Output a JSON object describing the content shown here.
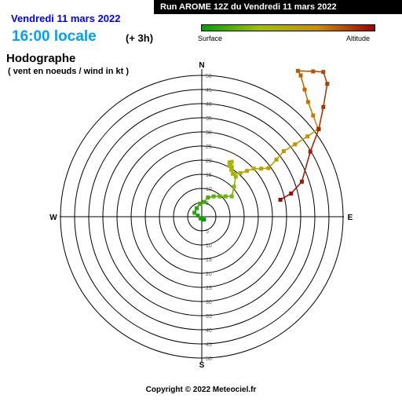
{
  "header": {
    "date": "Vendredi 11 mars 2022",
    "time": "16:00 locale",
    "offset": "(+ 3h)",
    "run": "Run AROME 12Z du Vendredi 11 mars 2022",
    "scale_low": "Surface",
    "scale_high": "Altitude",
    "scale_colors": [
      "#00a000",
      "#a0c000",
      "#c89000",
      "#a00000"
    ]
  },
  "footer": {
    "copyright": "Copyright © 2022 Meteociel.fr"
  },
  "chart_data": {
    "type": "scatter",
    "title": "Hodographe",
    "subtitle": "( vent en noeuds / wind in kt )",
    "compass": {
      "n": "N",
      "s": "S",
      "e": "E",
      "w": "W"
    },
    "ring_labels": [
      "5",
      "10",
      "15",
      "20",
      "25",
      "30",
      "35",
      "40",
      "45",
      "50"
    ],
    "rings": [
      5,
      10,
      15,
      20,
      25,
      30,
      35,
      40,
      45,
      50
    ],
    "max_speed": 50,
    "series": [
      {
        "points": [
          {
            "x": 0.8,
            "y": -1.0
          },
          {
            "x": -0.4,
            "y": -0.6
          },
          {
            "x": -1.4,
            "y": 0.4
          },
          {
            "x": -2.6,
            "y": 1.4
          },
          {
            "x": -1.8,
            "y": 3.0
          },
          {
            "x": -0.6,
            "y": 4.6
          },
          {
            "x": 0.8,
            "y": 5.2
          },
          {
            "x": 2.2,
            "y": 6.8
          },
          {
            "x": 4.2,
            "y": 7.2
          },
          {
            "x": 6.4,
            "y": 7.2
          },
          {
            "x": 8.4,
            "y": 7.2
          },
          {
            "x": 10.6,
            "y": 7.2
          },
          {
            "x": 11.4,
            "y": 10.6
          },
          {
            "x": 12.0,
            "y": 14.2
          },
          {
            "x": 11.0,
            "y": 15.2
          },
          {
            "x": 10.4,
            "y": 16.6
          },
          {
            "x": 9.8,
            "y": 18.0
          },
          {
            "x": 9.8,
            "y": 19.2
          },
          {
            "x": 10.6,
            "y": 19.4
          },
          {
            "x": 10.6,
            "y": 17.6
          },
          {
            "x": 11.2,
            "y": 15.2
          },
          {
            "x": 13.6,
            "y": 15.4
          },
          {
            "x": 16.0,
            "y": 16.2
          },
          {
            "x": 18.4,
            "y": 17.0
          },
          {
            "x": 21.0,
            "y": 17.0
          },
          {
            "x": 23.6,
            "y": 17.2
          },
          {
            "x": 26.4,
            "y": 20.2
          },
          {
            "x": 29.0,
            "y": 23.2
          },
          {
            "x": 33.0,
            "y": 25.6
          },
          {
            "x": 37.4,
            "y": 28.4
          },
          {
            "x": 41.2,
            "y": 31.0
          },
          {
            "x": 39.4,
            "y": 35.8
          },
          {
            "x": 37.6,
            "y": 40.6
          },
          {
            "x": 36.4,
            "y": 45.0
          },
          {
            "x": 35.0,
            "y": 50.0
          },
          {
            "x": 34.0,
            "y": 51.6
          },
          {
            "x": 39.4,
            "y": 51.4
          },
          {
            "x": 43.0,
            "y": 51.2
          },
          {
            "x": 44.4,
            "y": 47.0
          },
          {
            "x": 43.0,
            "y": 38.8
          },
          {
            "x": 41.4,
            "y": 31.0
          },
          {
            "x": 38.4,
            "y": 23.0
          },
          {
            "x": 35.4,
            "y": 12.4
          },
          {
            "x": 31.6,
            "y": 8.2
          },
          {
            "x": 27.8,
            "y": 6.0
          }
        ]
      }
    ]
  }
}
